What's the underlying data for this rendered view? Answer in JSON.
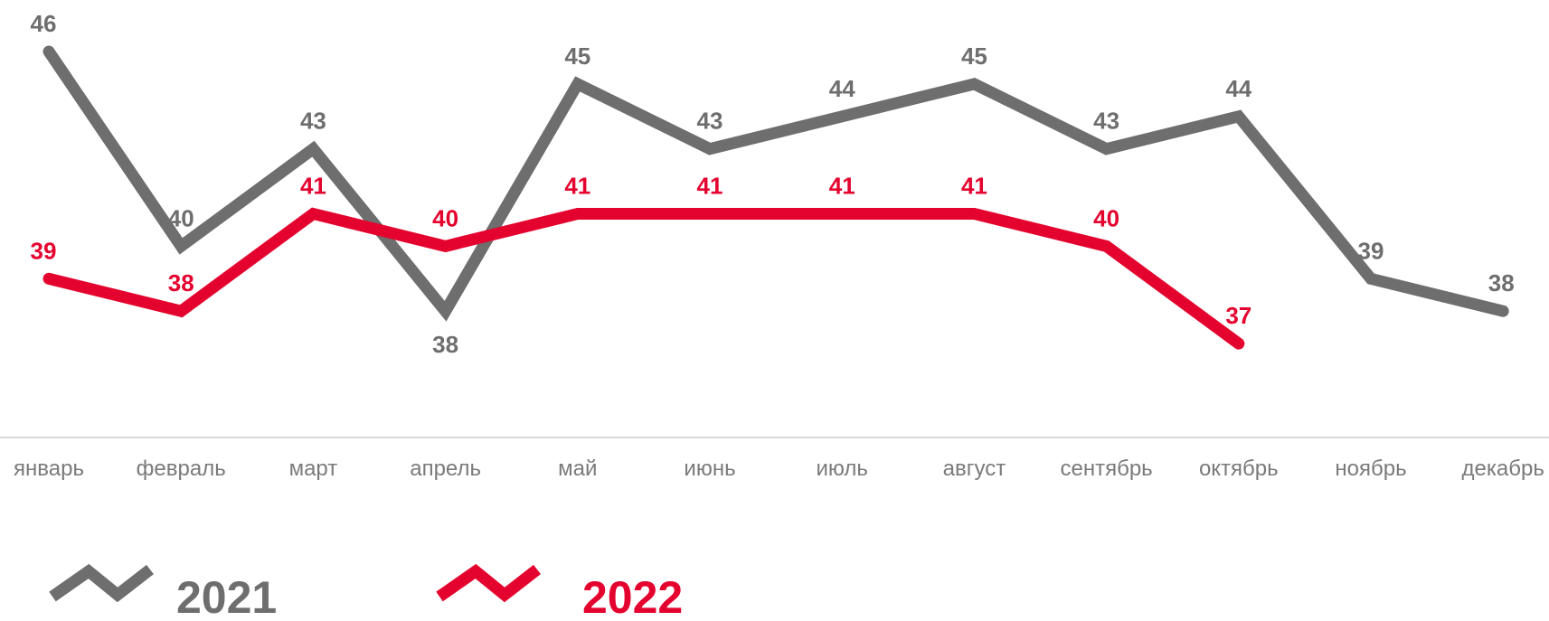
{
  "chart_data": {
    "type": "line",
    "categories": [
      "январь",
      "февраль",
      "март",
      "апрель",
      "май",
      "июнь",
      "июль",
      "август",
      "сентябрь",
      "октябрь",
      "ноябрь",
      "декабрь"
    ],
    "series": [
      {
        "name": "2021",
        "color": "#6e6e6e",
        "values": [
          46,
          40,
          43,
          38,
          45,
          43,
          44,
          45,
          43,
          44,
          39,
          38
        ]
      },
      {
        "name": "2022",
        "color": "#e4032e",
        "values": [
          39,
          38,
          41,
          40,
          41,
          41,
          41,
          41,
          40,
          37,
          null,
          null
        ]
      }
    ],
    "title": "",
    "xlabel": "",
    "ylabel": "",
    "ylim": [
      33,
      48
    ],
    "grid": false,
    "legend": "bottom-left"
  }
}
